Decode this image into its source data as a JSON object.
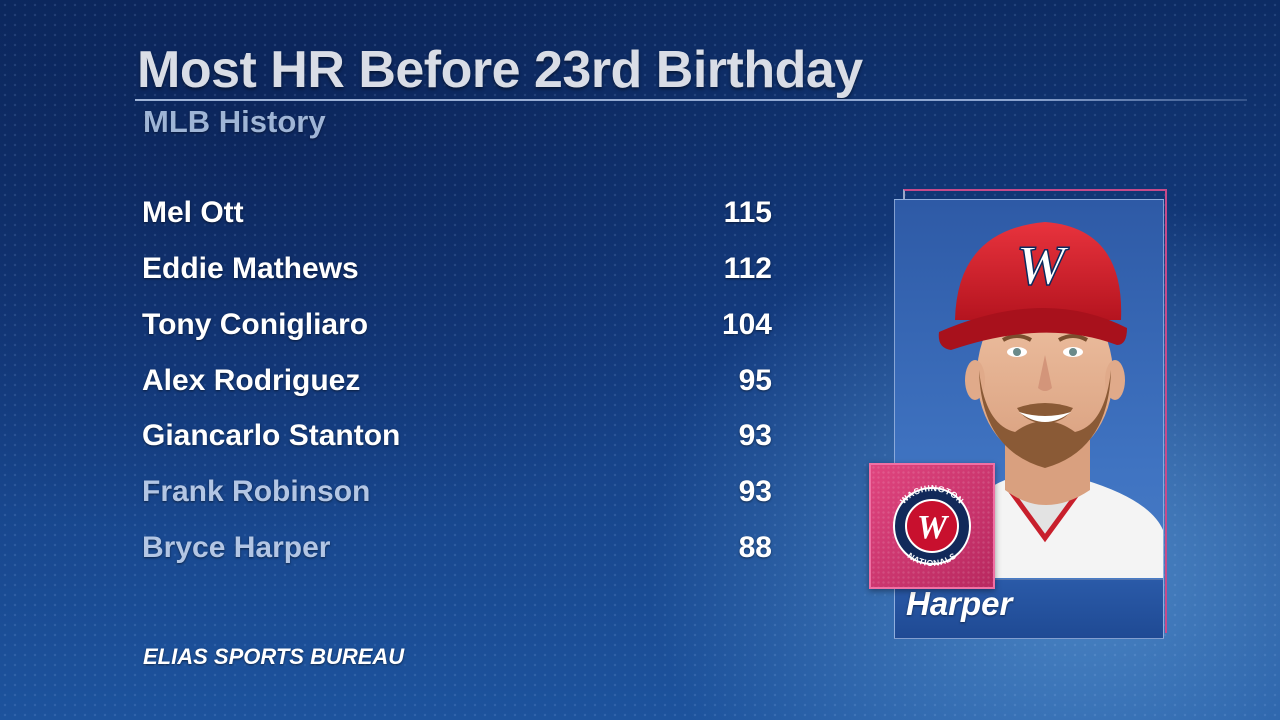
{
  "title": "Most HR Before 23rd Birthday",
  "subtitle": "MLB History",
  "leaders": [
    {
      "name": "Mel Ott",
      "hr": "115"
    },
    {
      "name": "Eddie Mathews",
      "hr": "112"
    },
    {
      "name": "Tony Conigliaro",
      "hr": "104"
    },
    {
      "name": "Alex Rodriguez",
      "hr": "95"
    },
    {
      "name": "Giancarlo Stanton",
      "hr": "93"
    },
    {
      "name": "Frank Robinson",
      "hr": "93"
    },
    {
      "name": "Bryce Harper",
      "hr": "88"
    }
  ],
  "source": "ELIAS SPORTS BUREAU",
  "player_card": {
    "name": "Harper",
    "cap_letter": "W",
    "logo_text_top": "WASHINGTON",
    "logo_text_bottom": "NATIONALS",
    "logo_letter": "W"
  },
  "colors": {
    "accent": "#d93d78",
    "cap_red": "#d3202c",
    "dim_name": "#b3c6e4"
  }
}
